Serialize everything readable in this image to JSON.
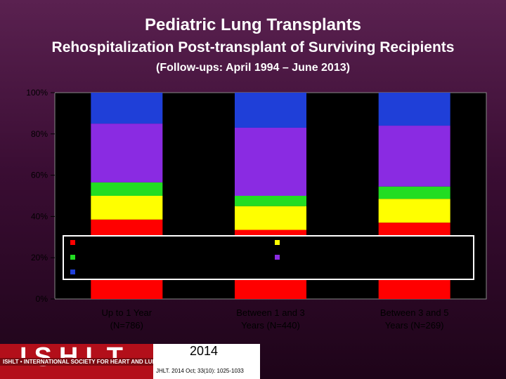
{
  "header": {
    "title": "Pediatric Lung Transplants",
    "subtitle": "Rehospitalization Post-transplant of Surviving Recipients",
    "followup": "(Follow-ups: April 1994 – June 2013)"
  },
  "chart_data": {
    "type": "bar",
    "stacked": true,
    "categories": [
      "Up to 1 Year (N=786)",
      "Between 1 and 3 Years (N=440)",
      "Between 3 and 5 Years (N=269)"
    ],
    "category_lines": [
      [
        "Up to 1 Year",
        "(N=786)"
      ],
      [
        "Between 1 and 3",
        "Years (N=440)"
      ],
      [
        "Between 3 and 5",
        "Years (N=269)"
      ]
    ],
    "ylim": [
      0,
      100
    ],
    "yticks": [
      "0%",
      "20%",
      "40%",
      "60%",
      "80%",
      "100%"
    ],
    "series": [
      {
        "color": "#ff0000",
        "values": [
          38.5,
          33.5,
          37.0
        ]
      },
      {
        "color": "#ffff00",
        "values": [
          11.5,
          11.5,
          11.5
        ]
      },
      {
        "color": "#22dd22",
        "values": [
          6.5,
          5.0,
          6.0
        ]
      },
      {
        "color": "#8a2be2",
        "values": [
          28.5,
          33.0,
          29.5
        ]
      },
      {
        "color": "#1f3fd8",
        "values": [
          15.0,
          17.0,
          16.0
        ]
      }
    ],
    "legend": {
      "position": "overlay-middle",
      "entries": [],
      "swatches": [
        "#ff0000",
        "#ffff00",
        "#22dd22",
        "#8a2be2",
        "#1f3fd8"
      ]
    },
    "grid": false
  },
  "footer": {
    "logo_text": "ISHLT",
    "logo_tagline": "ISHLT • INTERNATIONAL SOCIETY FOR HEART AND LUNG TRANSPLANTATION",
    "year": "2014",
    "citation": "JHLT. 2014 Oct; 33(10): 1025-1033"
  }
}
